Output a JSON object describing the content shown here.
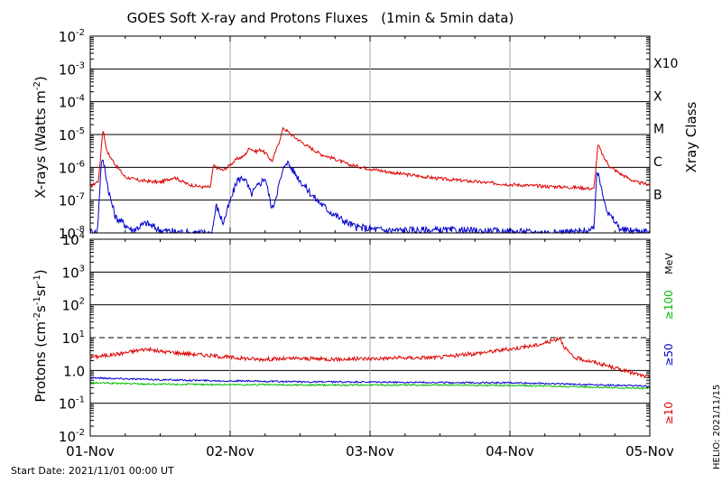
{
  "title": "GOES Soft X-ray and Protons Fluxes   (1min & 5min data)",
  "start_date": "Start Date: 2021/11/01 00:00 UT",
  "credit": "HELIO: 2021/11/15",
  "colors": {
    "red": "#dd0000",
    "blue": "#0000cc",
    "green": "#00bb00",
    "grid": "#000000",
    "day_line": "#aaaaaa"
  },
  "chart_data": [
    {
      "type": "line",
      "panel": "xray",
      "ylabel_main": "X-rays (Watts m",
      "ylabel_exp": "-2",
      "ylabel_close": ")",
      "yscale": "log",
      "ylim": [
        1e-08,
        0.01
      ],
      "ytick_exponents": [
        "-8",
        "-7",
        "-6",
        "-5",
        "-4",
        "-3",
        "-2"
      ],
      "xlim_days": [
        0,
        4
      ],
      "right_axis_title": "Xray Class",
      "class_labels": [
        {
          "label": "B",
          "value": 1e-07
        },
        {
          "label": "C",
          "value": 1e-06
        },
        {
          "label": "M",
          "value": 1e-05
        },
        {
          "label": "X",
          "value": 0.0001
        },
        {
          "label": "X10",
          "value": 0.001
        }
      ],
      "series": [
        {
          "color": "red",
          "points": [
            [
              0,
              2.5e-07
            ],
            [
              0.06,
              4e-07
            ],
            [
              0.09,
              1.5e-05
            ],
            [
              0.12,
              3e-06
            ],
            [
              0.18,
              1.2e-06
            ],
            [
              0.25,
              5e-07
            ],
            [
              0.35,
              4e-07
            ],
            [
              0.5,
              3.5e-07
            ],
            [
              0.6,
              5e-07
            ],
            [
              0.7,
              3e-07
            ],
            [
              0.8,
              2.5e-07
            ],
            [
              0.86,
              2.5e-07
            ],
            [
              0.88,
              1.1e-06
            ],
            [
              0.95,
              8e-07
            ],
            [
              1.0,
              1.2e-06
            ],
            [
              1.05,
              1.8e-06
            ],
            [
              1.1,
              2.2e-06
            ],
            [
              1.14,
              4e-06
            ],
            [
              1.18,
              3e-06
            ],
            [
              1.22,
              3.5e-06
            ],
            [
              1.26,
              2.5e-06
            ],
            [
              1.3,
              1.5e-06
            ],
            [
              1.35,
              6e-06
            ],
            [
              1.38,
              1.6e-05
            ],
            [
              1.45,
              9e-06
            ],
            [
              1.55,
              4.5e-06
            ],
            [
              1.65,
              2.5e-06
            ],
            [
              1.75,
              1.8e-06
            ],
            [
              1.85,
              1.2e-06
            ],
            [
              2.0,
              9e-07
            ],
            [
              2.2,
              6.5e-07
            ],
            [
              2.5,
              4.5e-07
            ],
            [
              2.8,
              3.5e-07
            ],
            [
              3.0,
              3e-07
            ],
            [
              3.2,
              2.7e-07
            ],
            [
              3.5,
              2.4e-07
            ],
            [
              3.6,
              2.2e-07
            ],
            [
              3.63,
              5e-06
            ],
            [
              3.67,
              2e-06
            ],
            [
              3.72,
              1e-06
            ],
            [
              3.8,
              6e-07
            ],
            [
              3.9,
              3.5e-07
            ],
            [
              4.0,
              3e-07
            ],
            [
              4.1,
              2.5e-07
            ],
            [
              4.2,
              2.3e-07
            ],
            [
              4.3,
              2.2e-07
            ],
            [
              4.4,
              2.4e-07
            ],
            [
              4.45,
              3.5e-06
            ],
            [
              4.5,
              1e-06
            ],
            [
              4.55,
              5e-07
            ],
            [
              4.6,
              3.2e-06
            ],
            [
              4.7,
              8e-07
            ],
            [
              4.8,
              5e-07
            ],
            [
              4.9,
              3e-07
            ],
            [
              4.95,
              2.2e-07
            ],
            [
              5.0,
              1.9e-07
            ],
            [
              5.1,
              2e-07
            ]
          ]
        },
        {
          "color": "blue",
          "points": [
            [
              0,
              1.1e-08
            ],
            [
              0.05,
              1e-08
            ],
            [
              0.08,
              1.6e-06
            ],
            [
              0.1,
              1.2e-06
            ],
            [
              0.13,
              2e-07
            ],
            [
              0.18,
              3e-08
            ],
            [
              0.25,
              1.8e-08
            ],
            [
              0.3,
              1.2e-08
            ],
            [
              0.4,
              2e-08
            ],
            [
              0.5,
              1.2e-08
            ],
            [
              0.7,
              1e-08
            ],
            [
              0.87,
              1e-08
            ],
            [
              0.9,
              7e-08
            ],
            [
              0.95,
              2e-08
            ],
            [
              1.05,
              4e-07
            ],
            [
              1.1,
              5e-07
            ],
            [
              1.15,
              1.5e-07
            ],
            [
              1.25,
              5e-07
            ],
            [
              1.3,
              5e-08
            ],
            [
              1.35,
              3e-07
            ],
            [
              1.4,
              1.6e-06
            ],
            [
              1.5,
              4e-07
            ],
            [
              1.6,
              1.2e-07
            ],
            [
              1.7,
              5e-08
            ],
            [
              1.8,
              2.5e-08
            ],
            [
              1.9,
              1.5e-08
            ],
            [
              2.1,
              1.2e-08
            ],
            [
              2.5,
              1.2e-08
            ],
            [
              2.9,
              1.1e-08
            ],
            [
              3.3,
              1e-08
            ],
            [
              3.5,
              1.1e-08
            ],
            [
              3.6,
              1.2e-08
            ],
            [
              3.62,
              8e-07
            ],
            [
              3.66,
              2e-07
            ],
            [
              3.7,
              4e-08
            ],
            [
              3.8,
              1.2e-08
            ],
            [
              4.0,
              1.1e-08
            ],
            [
              4.3,
              1.1e-08
            ],
            [
              4.43,
              1e-08
            ],
            [
              4.46,
              2.5e-07
            ],
            [
              4.5,
              4e-08
            ],
            [
              4.55,
              1.2e-08
            ],
            [
              4.62,
              1e-07
            ],
            [
              4.67,
              1.5e-08
            ],
            [
              4.8,
              1.1e-08
            ],
            [
              5.0,
              1.2e-08
            ],
            [
              5.1,
              1.5e-08
            ]
          ]
        }
      ]
    },
    {
      "type": "line",
      "panel": "protons",
      "ylabel_main": "Protons (cm",
      "ylabel_sup1": "-2",
      "ylabel_mid1": "s",
      "ylabel_sup2": "-1",
      "ylabel_mid2": "sr",
      "ylabel_sup3": "-1",
      "ylabel_close": ")",
      "yscale": "log",
      "ylim": [
        0.01,
        10000
      ],
      "ytick_labels": [
        {
          "base": "10",
          "exp": "-2",
          "value": 0.01
        },
        {
          "base": "10",
          "exp": "-1",
          "value": 0.1
        },
        {
          "base": "1.0",
          "exp": "",
          "value": 1
        },
        {
          "base": "10",
          "exp": "1",
          "value": 10
        },
        {
          "base": "10",
          "exp": "2",
          "value": 100
        },
        {
          "base": "10",
          "exp": "3",
          "value": 1000
        },
        {
          "base": "10",
          "exp": "4",
          "value": 10000
        }
      ],
      "threshold": 10,
      "right_axis_title": "MeV",
      "energy_labels": [
        {
          "label": "≥100",
          "color": "green",
          "value": 100
        },
        {
          "label": "≥50",
          "color": "blue",
          "value": 3
        },
        {
          "label": "≥10",
          "color": "red",
          "value": 0.05
        }
      ],
      "x_tick_labels": [
        "01-Nov",
        "02-Nov",
        "03-Nov",
        "04-Nov",
        "05-Nov"
      ],
      "x_tick_days": [
        0,
        1,
        2,
        3,
        4
      ],
      "series": [
        {
          "color": "red",
          "points": [
            [
              0,
              2.5
            ],
            [
              0.2,
              3.2
            ],
            [
              0.4,
              4.5
            ],
            [
              0.5,
              3.8
            ],
            [
              0.8,
              3
            ],
            [
              1.0,
              2.5
            ],
            [
              1.2,
              2.2
            ],
            [
              1.5,
              2.3
            ],
            [
              1.8,
              2.2
            ],
            [
              2.0,
              2.3
            ],
            [
              2.2,
              2.4
            ],
            [
              2.5,
              2.5
            ],
            [
              2.8,
              3.5
            ],
            [
              3.0,
              4.5
            ],
            [
              3.2,
              6
            ],
            [
              3.3,
              8
            ],
            [
              3.36,
              10
            ],
            [
              3.38,
              6
            ],
            [
              3.45,
              2.5
            ],
            [
              3.6,
              1.8
            ],
            [
              3.75,
              1.2
            ],
            [
              3.85,
              0.9
            ],
            [
              4.0,
              0.6
            ],
            [
              4.2,
              0.45
            ],
            [
              4.5,
              0.4
            ],
            [
              4.8,
              0.35
            ],
            [
              5.0,
              0.35
            ]
          ]
        },
        {
          "color": "blue",
          "points": [
            [
              0,
              0.6
            ],
            [
              0.5,
              0.52
            ],
            [
              1.0,
              0.48
            ],
            [
              1.5,
              0.45
            ],
            [
              2.0,
              0.44
            ],
            [
              2.5,
              0.43
            ],
            [
              3.0,
              0.42
            ],
            [
              3.5,
              0.38
            ],
            [
              4.0,
              0.33
            ],
            [
              4.5,
              0.3
            ],
            [
              5.0,
              0.28
            ]
          ]
        },
        {
          "color": "green",
          "points": [
            [
              0,
              0.42
            ],
            [
              0.5,
              0.38
            ],
            [
              1.0,
              0.37
            ],
            [
              1.5,
              0.36
            ],
            [
              2.0,
              0.36
            ],
            [
              2.5,
              0.36
            ],
            [
              3.0,
              0.35
            ],
            [
              3.5,
              0.32
            ],
            [
              4.0,
              0.28
            ],
            [
              4.5,
              0.25
            ],
            [
              5.0,
              0.24
            ]
          ]
        }
      ]
    }
  ]
}
